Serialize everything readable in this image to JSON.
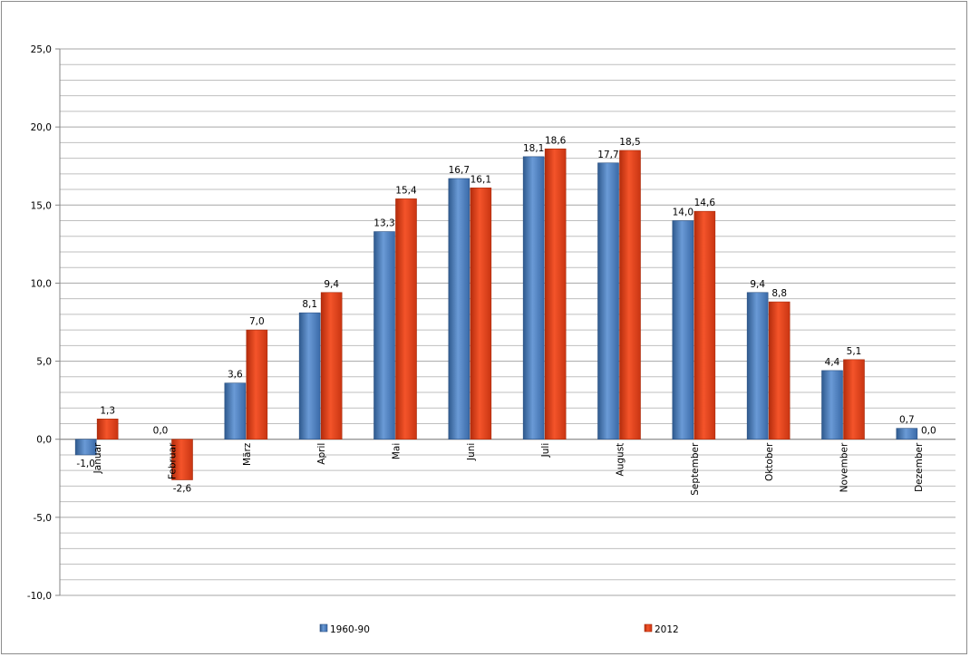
{
  "chart_data": {
    "type": "bar",
    "categories": [
      "Januar",
      "Februar",
      "März",
      "April",
      "Mai",
      "Juni",
      "Juli",
      "August",
      "September",
      "Oktober",
      "November",
      "Dezember"
    ],
    "series": [
      {
        "name": "1960-90",
        "color": "#4f81bd",
        "values": [
          -1.0,
          0.0,
          3.6,
          8.1,
          13.3,
          16.7,
          18.1,
          17.7,
          14.0,
          9.4,
          4.4,
          0.7
        ],
        "labels": [
          "-1,0",
          "0,0",
          "3,6",
          "8,1",
          "13,3",
          "16,7",
          "18,1",
          "17,7",
          "14,0",
          "9,4",
          "4,4",
          "0,7"
        ]
      },
      {
        "name": "2012",
        "color": "#e8431c",
        "values": [
          1.3,
          -2.6,
          7.0,
          9.4,
          15.4,
          16.1,
          18.6,
          18.5,
          14.6,
          8.8,
          5.1,
          0.0
        ],
        "labels": [
          "1,3",
          "-2,6",
          "7,0",
          "9,4",
          "15,4",
          "16,1",
          "18,6",
          "18,5",
          "14,6",
          "8,8",
          "5,1",
          "0,0"
        ]
      }
    ],
    "ylim": [
      -10,
      25
    ],
    "yticks": [
      25,
      20,
      15,
      10,
      5,
      0,
      -5,
      -10
    ],
    "ytick_labels": [
      "25,0",
      "20,0",
      "15,0",
      "10,0",
      "5,0",
      "0,0",
      "-5,0",
      "-10,0"
    ],
    "grid": true,
    "legend_position": "bottom",
    "title": "",
    "xlabel": "",
    "ylabel": ""
  }
}
